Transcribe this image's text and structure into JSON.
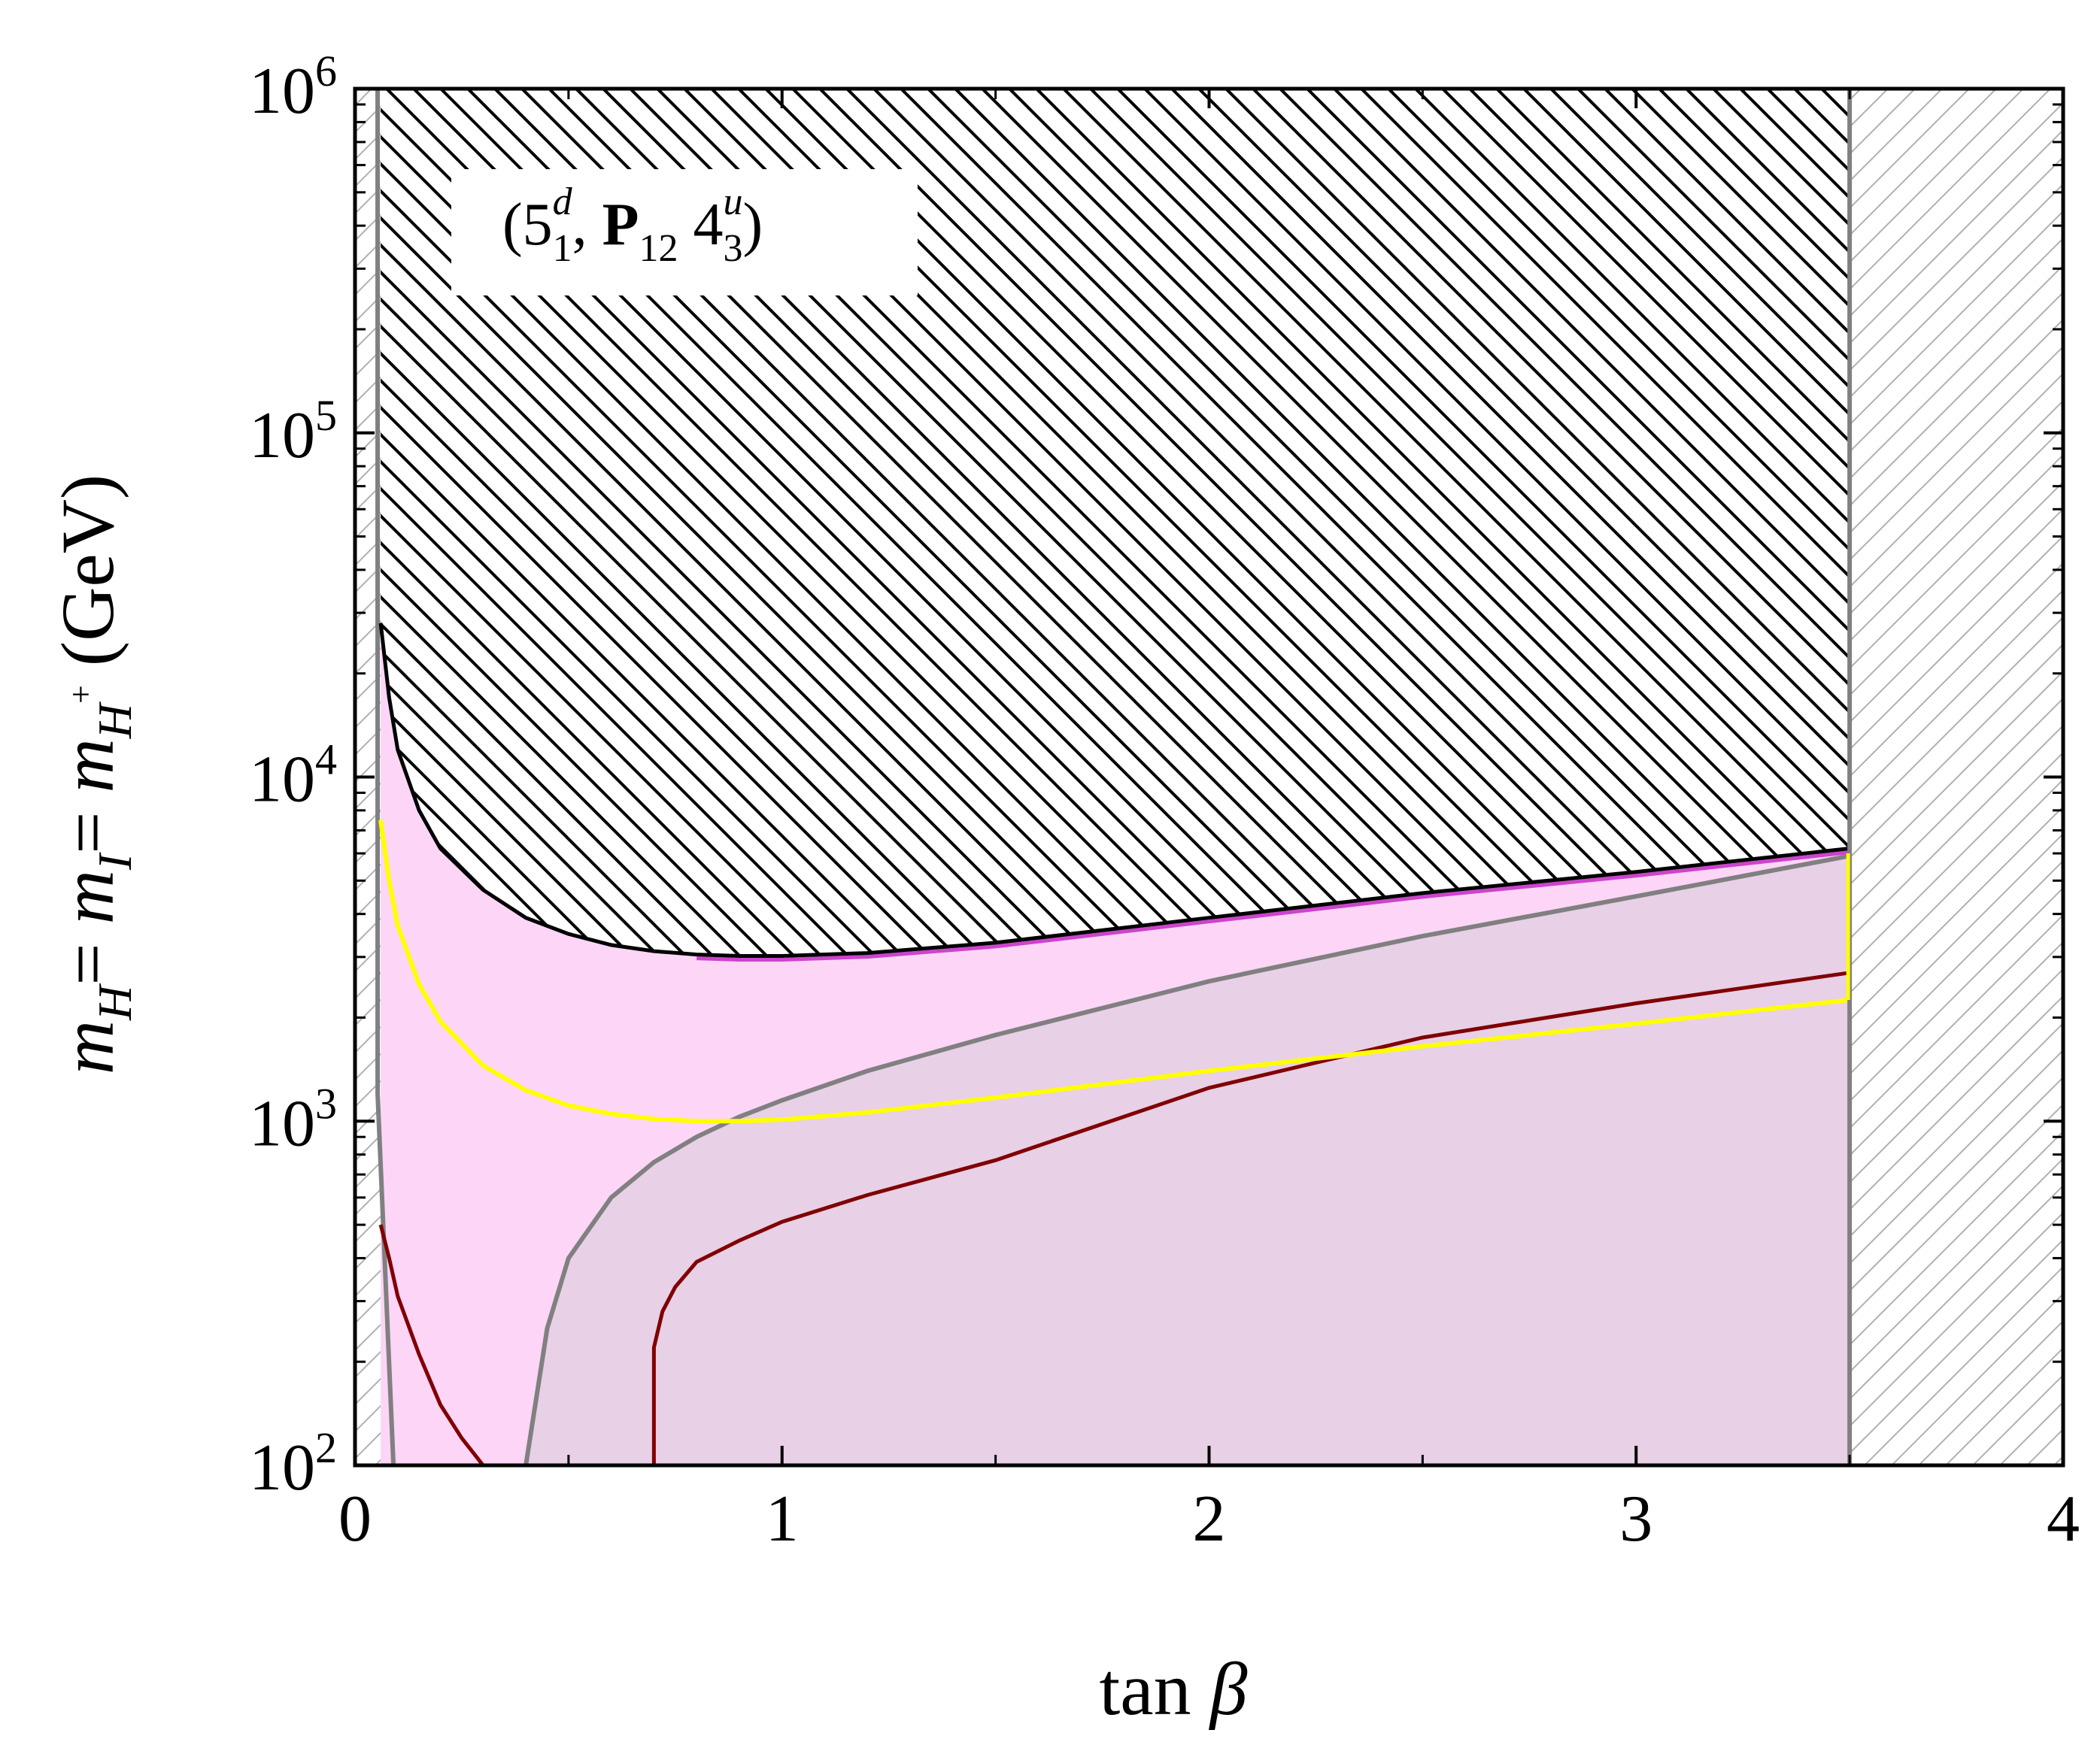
{
  "chart_data": {
    "type": "area",
    "xlabel": "tan β",
    "ylabel": "m_H = m_I = m_H+ (GeV)",
    "xlim": [
      0,
      4
    ],
    "ylim": [
      100,
      1000000
    ],
    "yscale": "log",
    "x_ticks": [
      "0",
      "1",
      "2",
      "3",
      "4"
    ],
    "y_ticks": [
      {
        "base": "10",
        "exp": "2",
        "value": 100
      },
      {
        "base": "10",
        "exp": "3",
        "value": 1000
      },
      {
        "base": "10",
        "exp": "4",
        "value": 10000
      },
      {
        "base": "10",
        "exp": "5",
        "value": 100000
      },
      {
        "base": "10",
        "exp": "6",
        "value": 1000000
      }
    ],
    "annotation": {
      "open": "(5",
      "sup1": "d",
      "sub1": "1",
      "sep": ", ",
      "bold": "P",
      "sub2": "12",
      "mid": " 4",
      "sup2": "u",
      "sub3": "3",
      "close": ")"
    },
    "colors": {
      "pink_region": "#fcd5f7",
      "mauve_region": "#e8d0e6",
      "gray_line": "#808080",
      "darkred_line": "#800000",
      "yellow_line": "#ffff00",
      "magenta_line": "#cc44cc",
      "hatch": "#000000",
      "light_hatch": "#b0b0b0"
    },
    "series": [
      {
        "key": "black_boundary",
        "x": [
          0.06,
          0.08,
          0.1,
          0.15,
          0.2,
          0.3,
          0.4,
          0.5,
          0.6,
          0.7,
          0.8,
          0.9,
          1.0,
          1.2,
          1.5,
          2.0,
          2.5,
          3.0,
          3.5
        ],
        "y": [
          28000,
          17000,
          12000,
          8000,
          6200,
          4700,
          3900,
          3500,
          3250,
          3120,
          3050,
          3020,
          3020,
          3080,
          3300,
          3900,
          4600,
          5300,
          6200
        ]
      },
      {
        "key": "yellow_line",
        "x": [
          0.06,
          0.08,
          0.1,
          0.15,
          0.2,
          0.3,
          0.4,
          0.5,
          0.6,
          0.7,
          0.8,
          0.9,
          1.0,
          1.2,
          1.5,
          2.0,
          2.5,
          3.0,
          3.5
        ],
        "y": [
          7500,
          5000,
          3700,
          2500,
          1950,
          1450,
          1230,
          1110,
          1050,
          1015,
          1000,
          1000,
          1010,
          1060,
          1170,
          1400,
          1650,
          1920,
          2250
        ]
      },
      {
        "key": "gray_curve",
        "x": [
          0.4,
          0.45,
          0.5,
          0.6,
          0.7,
          0.8,
          0.9,
          1.0,
          1.2,
          1.5,
          2.0,
          2.5,
          3.0,
          3.5
        ],
        "y": [
          100,
          250,
          400,
          600,
          760,
          900,
          1030,
          1150,
          1400,
          1780,
          2550,
          3450,
          4500,
          5900
        ]
      },
      {
        "key": "darkred_curve",
        "x": [
          0.7,
          0.7,
          0.72,
          0.75,
          0.8,
          0.9,
          1.0,
          1.2,
          1.5,
          2.0,
          2.5,
          3.0,
          3.5
        ],
        "y": [
          100,
          220,
          280,
          330,
          390,
          450,
          510,
          610,
          770,
          1250,
          1750,
          2200,
          2700
        ]
      },
      {
        "key": "darkred_left",
        "x": [
          0.06,
          0.08,
          0.1,
          0.15,
          0.2,
          0.25,
          0.3
        ],
        "y": [
          500,
          400,
          310,
          210,
          150,
          120,
          100
        ]
      }
    ]
  }
}
